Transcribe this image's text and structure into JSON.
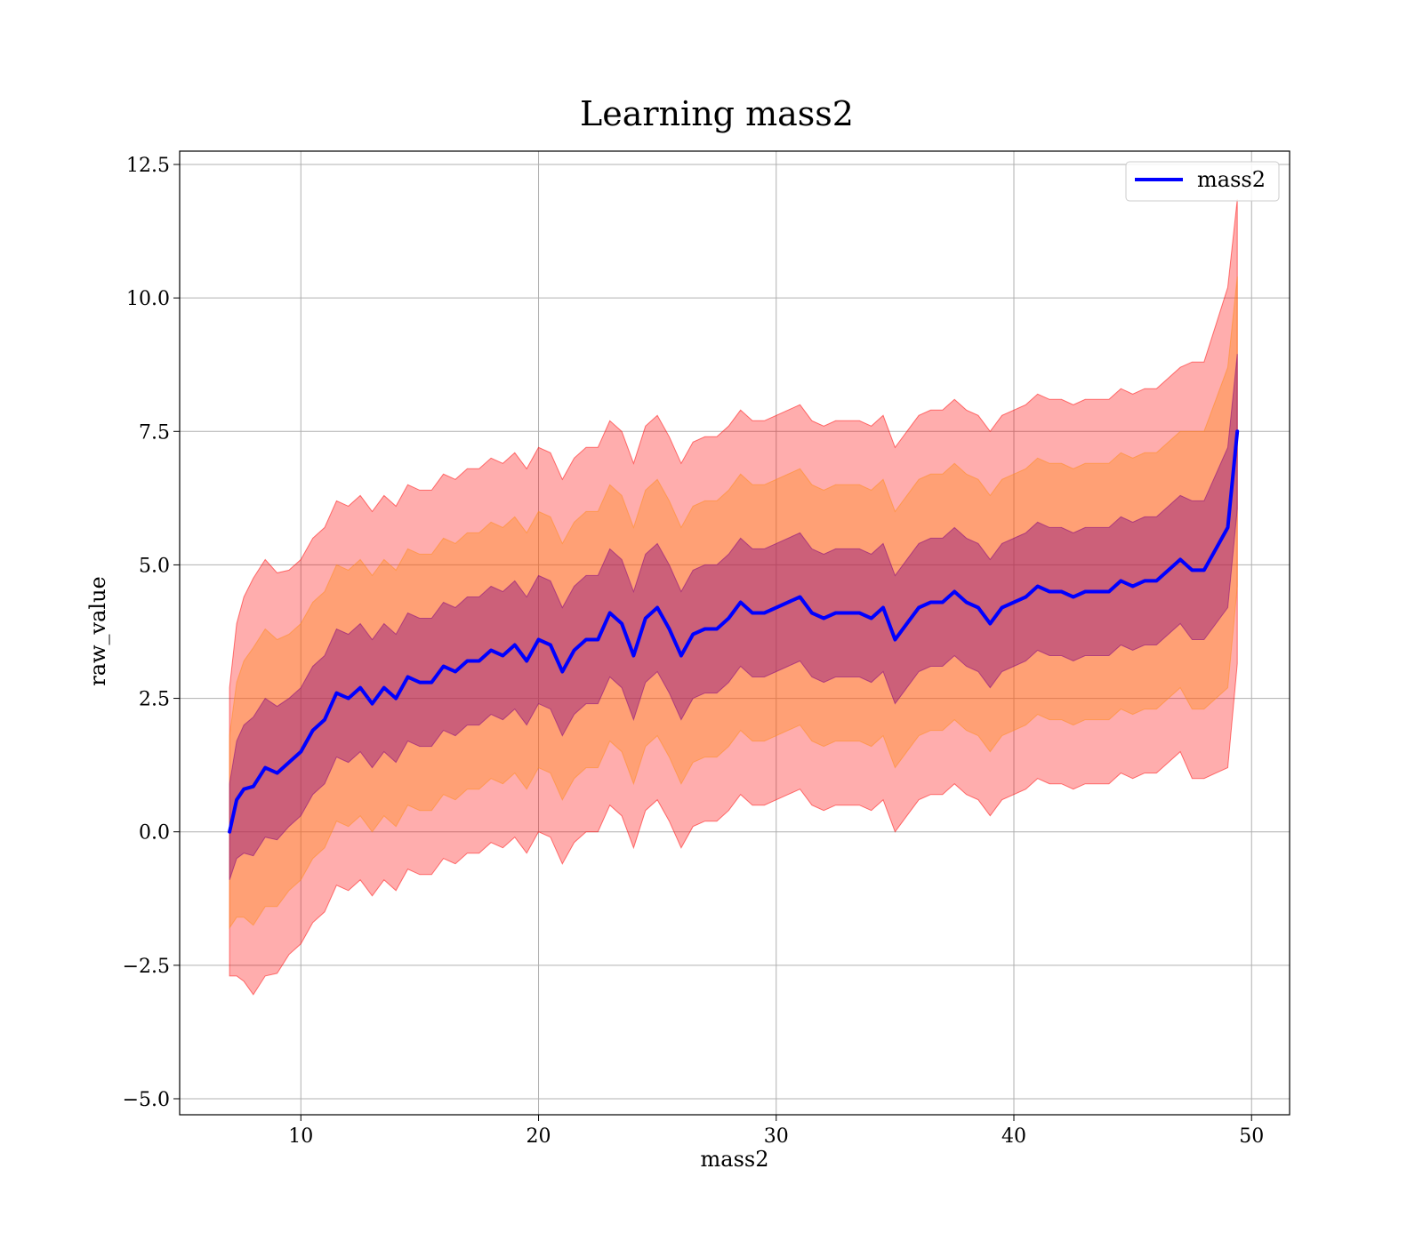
{
  "chart_data": {
    "type": "line",
    "title": "Learning mass2",
    "xlabel": "mass2",
    "ylabel": "raw_value",
    "xlim": [
      4.9,
      51.6
    ],
    "ylim": [
      -5.3,
      12.75
    ],
    "xticks": [
      10,
      20,
      30,
      40,
      50
    ],
    "xtick_labels": [
      "10",
      "20",
      "30",
      "40",
      "50"
    ],
    "yticks": [
      -5.0,
      -2.5,
      0.0,
      2.5,
      5.0,
      7.5,
      10.0,
      12.5
    ],
    "ytick_labels": [
      "−5.0",
      "−2.5",
      "0.0",
      "2.5",
      "5.0",
      "7.5",
      "10.0",
      "12.5"
    ],
    "grid": true,
    "legend": {
      "position": "top-right",
      "entries": [
        "mass2"
      ]
    },
    "colors": {
      "line": "#0000ff",
      "band_1sigma": "#800080",
      "band_2sigma": "#ff8c1a",
      "band_3sigma": "#ff0000"
    },
    "series": [
      {
        "name": "mass2",
        "x": [
          7.0,
          7.3,
          7.6,
          8.0,
          8.5,
          9.0,
          9.5,
          10.0,
          10.5,
          11.0,
          11.5,
          12.0,
          12.5,
          13.0,
          13.5,
          14.0,
          14.5,
          15.0,
          15.5,
          16.0,
          16.5,
          17.0,
          17.5,
          18.0,
          18.5,
          19.0,
          19.5,
          20.0,
          20.5,
          21.0,
          21.5,
          22.0,
          22.5,
          23.0,
          23.5,
          24.0,
          24.5,
          25.0,
          25.5,
          26.0,
          26.5,
          27.0,
          27.5,
          28.0,
          28.5,
          29.0,
          29.5,
          30.0,
          30.5,
          31.0,
          31.5,
          32.0,
          32.5,
          33.0,
          33.5,
          34.0,
          34.5,
          35.0,
          35.5,
          36.0,
          36.5,
          37.0,
          37.5,
          38.0,
          38.5,
          39.0,
          39.5,
          40.0,
          40.5,
          41.0,
          41.5,
          42.0,
          42.5,
          43.0,
          43.5,
          44.0,
          44.5,
          45.0,
          45.5,
          46.0,
          46.5,
          47.0,
          47.5,
          48.0,
          48.5,
          49.0,
          49.4
        ],
        "y": [
          0.0,
          0.6,
          0.8,
          0.85,
          1.2,
          1.1,
          1.3,
          1.5,
          1.9,
          2.1,
          2.6,
          2.5,
          2.7,
          2.4,
          2.7,
          2.5,
          2.9,
          2.8,
          2.8,
          3.1,
          3.0,
          3.2,
          3.2,
          3.4,
          3.3,
          3.5,
          3.2,
          3.6,
          3.5,
          3.0,
          3.4,
          3.6,
          3.6,
          4.1,
          3.9,
          3.3,
          4.0,
          4.2,
          3.8,
          3.3,
          3.7,
          3.8,
          3.8,
          4.0,
          4.3,
          4.1,
          4.1,
          4.2,
          4.3,
          4.4,
          4.1,
          4.0,
          4.1,
          4.1,
          4.1,
          4.0,
          4.2,
          3.6,
          3.9,
          4.2,
          4.3,
          4.3,
          4.5,
          4.3,
          4.2,
          3.9,
          4.2,
          4.3,
          4.4,
          4.6,
          4.5,
          4.5,
          4.4,
          4.5,
          4.5,
          4.5,
          4.7,
          4.6,
          4.7,
          4.7,
          4.9,
          5.1,
          4.9,
          4.9,
          5.3,
          5.7,
          7.5
        ],
        "sigma": [
          0.9,
          1.1,
          1.2,
          1.3,
          1.3,
          1.25,
          1.2,
          1.2,
          1.2,
          1.2,
          1.2,
          1.2,
          1.2,
          1.2,
          1.2,
          1.2,
          1.2,
          1.2,
          1.2,
          1.2,
          1.2,
          1.2,
          1.2,
          1.2,
          1.2,
          1.2,
          1.2,
          1.2,
          1.2,
          1.2,
          1.2,
          1.2,
          1.2,
          1.2,
          1.2,
          1.2,
          1.2,
          1.2,
          1.2,
          1.2,
          1.2,
          1.2,
          1.2,
          1.2,
          1.2,
          1.2,
          1.2,
          1.2,
          1.2,
          1.2,
          1.2,
          1.2,
          1.2,
          1.2,
          1.2,
          1.2,
          1.2,
          1.2,
          1.2,
          1.2,
          1.2,
          1.2,
          1.2,
          1.2,
          1.2,
          1.2,
          1.2,
          1.2,
          1.2,
          1.2,
          1.2,
          1.2,
          1.2,
          1.2,
          1.2,
          1.2,
          1.2,
          1.2,
          1.2,
          1.2,
          1.2,
          1.2,
          1.3,
          1.3,
          1.4,
          1.5,
          1.45
        ]
      }
    ]
  }
}
